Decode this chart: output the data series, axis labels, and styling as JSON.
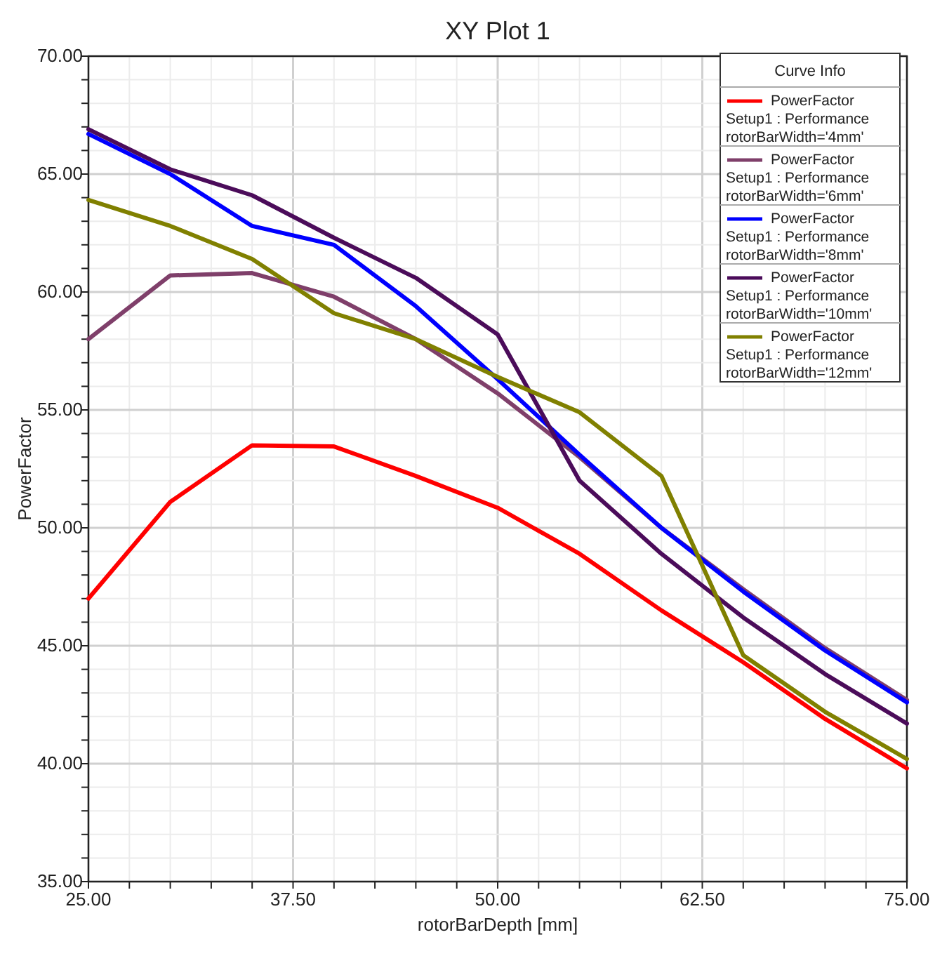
{
  "chart_data": {
    "type": "line",
    "title": "XY Plot 1",
    "xlabel": "rotorBarDepth [mm]",
    "ylabel": "PowerFactor",
    "legend_title": "Curve Info",
    "legend": "top right",
    "grid": true,
    "line_style": "solid",
    "x": [
      25,
      30,
      35,
      40,
      45,
      50,
      55,
      60,
      65,
      70,
      75
    ],
    "xlim": [
      25,
      75
    ],
    "ylim": [
      35,
      70
    ],
    "xticks": [
      {
        "value": 25,
        "label": "25.00"
      },
      {
        "value": 27.5,
        "label": null
      },
      {
        "value": 30,
        "label": null
      },
      {
        "value": 32.5,
        "label": null
      },
      {
        "value": 35,
        "label": null
      },
      {
        "value": 37.5,
        "label": "37.50"
      },
      {
        "value": 40,
        "label": null
      },
      {
        "value": 42.5,
        "label": null
      },
      {
        "value": 45,
        "label": null
      },
      {
        "value": 47.5,
        "label": null
      },
      {
        "value": 50,
        "label": "50.00"
      },
      {
        "value": 52.5,
        "label": null
      },
      {
        "value": 55,
        "label": null
      },
      {
        "value": 57.5,
        "label": null
      },
      {
        "value": 60,
        "label": null
      },
      {
        "value": 62.5,
        "label": "62.50"
      },
      {
        "value": 65,
        "label": null
      },
      {
        "value": 67.5,
        "label": null
      },
      {
        "value": 70,
        "label": null
      },
      {
        "value": 72.5,
        "label": null
      },
      {
        "value": 75,
        "label": "75.00"
      }
    ],
    "yticks": [
      {
        "value": 35,
        "label": "35.00"
      },
      {
        "value": 36,
        "label": null
      },
      {
        "value": 37,
        "label": null
      },
      {
        "value": 38,
        "label": null
      },
      {
        "value": 39,
        "label": null
      },
      {
        "value": 40,
        "label": "40.00"
      },
      {
        "value": 41,
        "label": null
      },
      {
        "value": 42,
        "label": null
      },
      {
        "value": 43,
        "label": null
      },
      {
        "value": 44,
        "label": null
      },
      {
        "value": 45,
        "label": "45.00"
      },
      {
        "value": 46,
        "label": null
      },
      {
        "value": 47,
        "label": null
      },
      {
        "value": 48,
        "label": null
      },
      {
        "value": 49,
        "label": null
      },
      {
        "value": 50,
        "label": "50.00"
      },
      {
        "value": 51,
        "label": null
      },
      {
        "value": 52,
        "label": null
      },
      {
        "value": 53,
        "label": null
      },
      {
        "value": 54,
        "label": null
      },
      {
        "value": 55,
        "label": "55.00"
      },
      {
        "value": 56,
        "label": null
      },
      {
        "value": 57,
        "label": null
      },
      {
        "value": 58,
        "label": null
      },
      {
        "value": 59,
        "label": null
      },
      {
        "value": 60,
        "label": "60.00"
      },
      {
        "value": 61,
        "label": null
      },
      {
        "value": 62,
        "label": null
      },
      {
        "value": 63,
        "label": null
      },
      {
        "value": 64,
        "label": null
      },
      {
        "value": 65,
        "label": "65.00"
      },
      {
        "value": 66,
        "label": null
      },
      {
        "value": 67,
        "label": null
      },
      {
        "value": 68,
        "label": null
      },
      {
        "value": 69,
        "label": null
      },
      {
        "value": 70,
        "label": "70.00"
      }
    ],
    "series": [
      {
        "name": "PowerFactor\nSetup1 : Performance\nrotorBarWidth='4mm'",
        "color": "#ff0000",
        "values": [
          47.0,
          51.1,
          53.5,
          53.45,
          52.2,
          50.85,
          48.9,
          46.5,
          44.3,
          41.9,
          39.8
        ]
      },
      {
        "name": "PowerFactor\nSetup1 : Performance\nrotorBarWidth='6mm'",
        "color": "#7f3f6a",
        "values": [
          58.0,
          60.7,
          60.8,
          59.8,
          58.0,
          55.7,
          53.0,
          50.0,
          47.4,
          44.9,
          42.7
        ]
      },
      {
        "name": "PowerFactor\nSetup1 : Performance\nrotorBarWidth='8mm'",
        "color": "#0000ff",
        "values": [
          66.7,
          65.0,
          62.8,
          62.0,
          59.4,
          56.3,
          53.1,
          50.0,
          47.3,
          44.8,
          42.6
        ]
      },
      {
        "name": "PowerFactor\nSetup1 : Performance\nrotorBarWidth='10mm'",
        "color": "#4b0c5a",
        "values": [
          66.9,
          65.2,
          64.1,
          62.3,
          60.6,
          58.2,
          52.0,
          48.9,
          46.2,
          43.8,
          41.7
        ]
      },
      {
        "name": "PowerFactor\nSetup1 : Performance\nrotorBarWidth='12mm'",
        "color": "#808000",
        "values": [
          63.9,
          62.8,
          61.4,
          59.1,
          58.0,
          56.4,
          54.9,
          52.2,
          44.6,
          42.2,
          40.2
        ]
      }
    ]
  }
}
